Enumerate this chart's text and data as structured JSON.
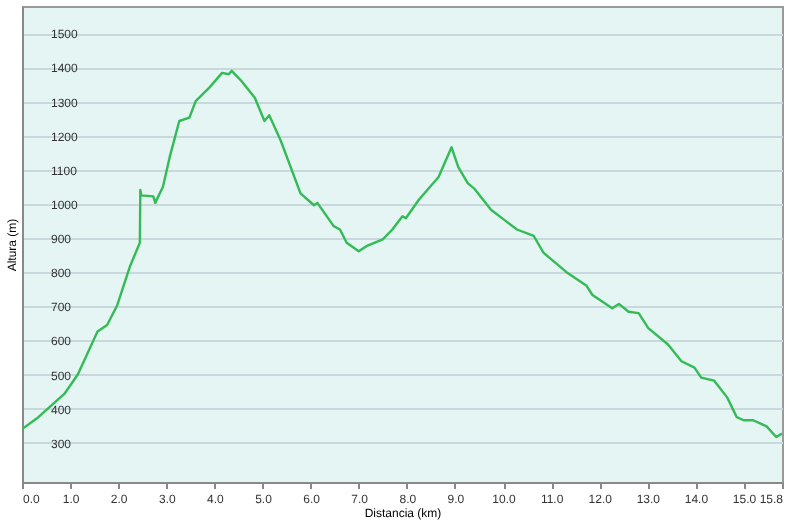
{
  "chart_data": {
    "type": "line",
    "xlabel": "Distancia (km)",
    "ylabel": "Altura (m)",
    "x": [
      0,
      0.34,
      0.88,
      1.16,
      1.57,
      1.77,
      1.98,
      2.25,
      2.45,
      2.46,
      2.48,
      2.73,
      2.77,
      2.93,
      3.07,
      3.27,
      3.48,
      3.61,
      3.89,
      4.16,
      4.3,
      4.36,
      4.57,
      4.84,
      5.04,
      5.14,
      5.38,
      5.79,
      6.07,
      6.14,
      6.48,
      6.61,
      6.75,
      7.0,
      7.16,
      7.5,
      7.7,
      7.91,
      7.98,
      8.25,
      8.66,
      8.93,
      9.07,
      9.27,
      9.41,
      9.75,
      10.02,
      10.29,
      10.64,
      10.84,
      11.32,
      11.73,
      11.86,
      12.07,
      12.27,
      12.41,
      12.61,
      12.82,
      13.02,
      13.43,
      13.71,
      13.98,
      14.12,
      14.39,
      14.66,
      14.86,
      15.0,
      15.2,
      15.48,
      15.68,
      15.8
    ],
    "series": [
      {
        "color": "#33bb55",
        "values": [
          340,
          375,
          443,
          500,
          626,
          645,
          703,
          819,
          886,
          1041,
          1025,
          1022,
          1003,
          1050,
          1137,
          1243,
          1253,
          1301,
          1340,
          1384,
          1380,
          1390,
          1359,
          1311,
          1243,
          1260,
          1185,
          1031,
          996,
          1003,
          935,
          925,
          886,
          861,
          876,
          896,
          925,
          964,
          958,
          1012,
          1079,
          1166,
          1108,
          1060,
          1044,
          983,
          954,
          925,
          906,
          857,
          800,
          761,
          733,
          713,
          694,
          707,
          684,
          680,
          636,
          588,
          539,
          520,
          491,
          482,
          433,
          375,
          366,
          366,
          348,
          317,
          327
        ]
      }
    ],
    "xlim": [
      0,
      15.8
    ],
    "ylim": [
      185,
      1580
    ],
    "xticks": [
      {
        "value": 0,
        "label": "0.0"
      },
      {
        "value": 1,
        "label": "1.0"
      },
      {
        "value": 2,
        "label": "2.0"
      },
      {
        "value": 3,
        "label": "3.0"
      },
      {
        "value": 4,
        "label": "4.0"
      },
      {
        "value": 5,
        "label": "5.0"
      },
      {
        "value": 6,
        "label": "6.0"
      },
      {
        "value": 7,
        "label": "7.0"
      },
      {
        "value": 8,
        "label": "8.0"
      },
      {
        "value": 9,
        "label": "9.0"
      },
      {
        "value": 10,
        "label": "10.0"
      },
      {
        "value": 11,
        "label": "11.0"
      },
      {
        "value": 12,
        "label": "12.0"
      },
      {
        "value": 13,
        "label": "13.0"
      },
      {
        "value": 14,
        "label": "14.0"
      },
      {
        "value": 15,
        "label": "15.0"
      },
      {
        "value": 15.8,
        "label": "15.8"
      }
    ],
    "yticks": [
      300,
      400,
      500,
      600,
      700,
      800,
      900,
      1000,
      1100,
      1200,
      1300,
      1400,
      1500
    ],
    "grid": "y",
    "marker": "none"
  }
}
